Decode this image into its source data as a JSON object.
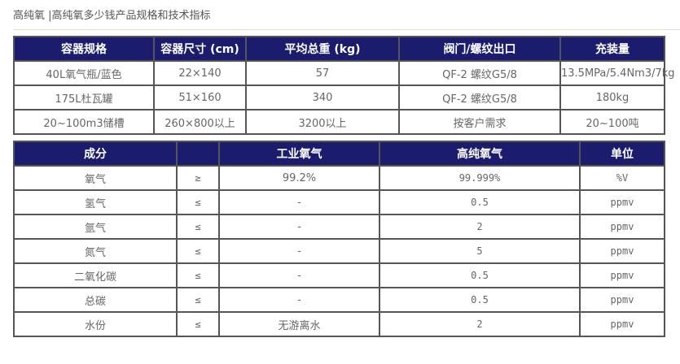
{
  "page_title": "高纯氧 |高纯氧多少钱产品规格和技术指标",
  "colors": {
    "header_bg": "#1c1c6e",
    "header_text": "#ffffff",
    "border": "#555555"
  },
  "spec_table": {
    "headers": [
      "容器规格",
      "容器尺寸  (cm)",
      "平均总重  (kg)",
      "阀门/螺纹出口",
      "充装量"
    ],
    "rows": [
      [
        "40L氧气瓶/蓝色",
        "22×140",
        "57",
        "QF-2 螺纹G5/8",
        "13.5MPa/5.4Nm3/7kg"
      ],
      [
        "175L杜瓦罐",
        "51×160",
        "340",
        "QF-2 螺纹G5/8",
        "180kg"
      ],
      [
        "20~100m3储槽",
        "260×800以上",
        "3200以上",
        "按客户需求",
        "20~100吨"
      ]
    ]
  },
  "tech_table": {
    "headers": [
      "成分",
      "",
      "工业氧气",
      "高纯氧气",
      "单位"
    ],
    "rows": [
      [
        "氧气",
        "≥",
        "99.2%",
        "99.999%",
        "%V"
      ],
      [
        "氢气",
        "≤",
        "-",
        "0.5",
        "ppmv"
      ],
      [
        "氩气",
        "≤",
        "-",
        "2",
        "ppmv"
      ],
      [
        "氮气",
        "≤",
        "-",
        "5",
        "ppmv"
      ],
      [
        "二氧化碳",
        "≤",
        "-",
        "0.5",
        "ppmv"
      ],
      [
        "总碳",
        "≤",
        "-",
        "0.5",
        "ppmv"
      ],
      [
        "水份",
        "≤",
        "无游离水",
        "2",
        "ppmv"
      ]
    ]
  }
}
